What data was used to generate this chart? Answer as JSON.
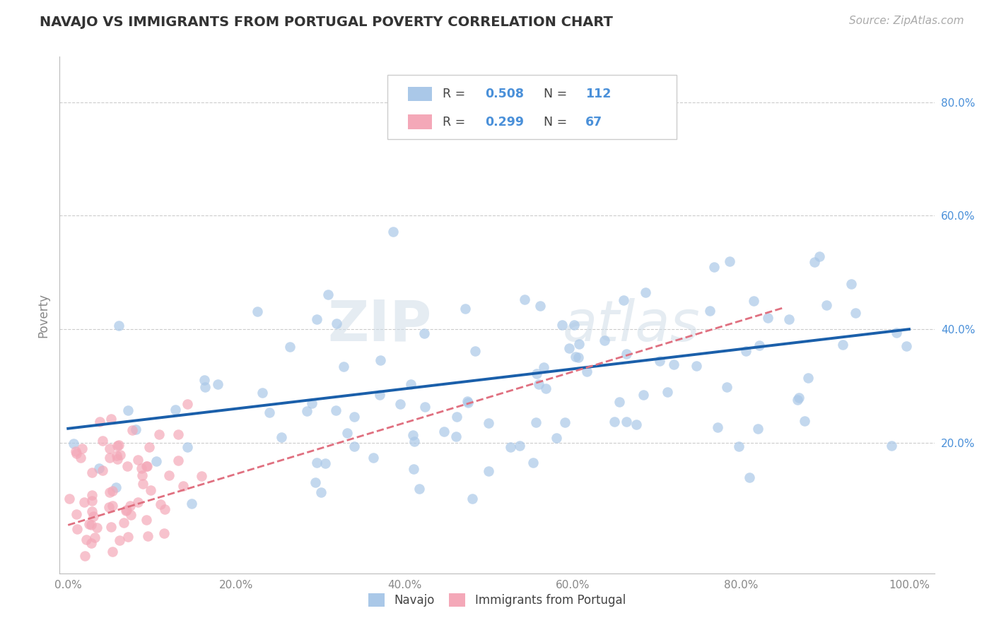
{
  "title": "NAVAJO VS IMMIGRANTS FROM PORTUGAL POVERTY CORRELATION CHART",
  "source": "Source: ZipAtlas.com",
  "ylabel": "Poverty",
  "navajo_R": 0.508,
  "navajo_N": 112,
  "portugal_R": 0.299,
  "portugal_N": 67,
  "navajo_color": "#aac8e8",
  "portugal_color": "#f4a8b8",
  "navajo_line_color": "#1a5faa",
  "portugal_line_color": "#e07080",
  "background_color": "#ffffff",
  "watermark_text": "ZIPatlas",
  "xlim": [
    -0.01,
    1.03
  ],
  "ylim": [
    -0.03,
    0.88
  ],
  "xtick_vals": [
    0.0,
    0.2,
    0.4,
    0.6,
    0.8,
    1.0
  ],
  "ytick_vals": [
    0.2,
    0.4,
    0.6,
    0.8
  ],
  "tick_color": "#4a90d9",
  "axis_label_color": "#888888",
  "title_color": "#333333",
  "source_color": "#aaaaaa",
  "grid_color": "#cccccc"
}
